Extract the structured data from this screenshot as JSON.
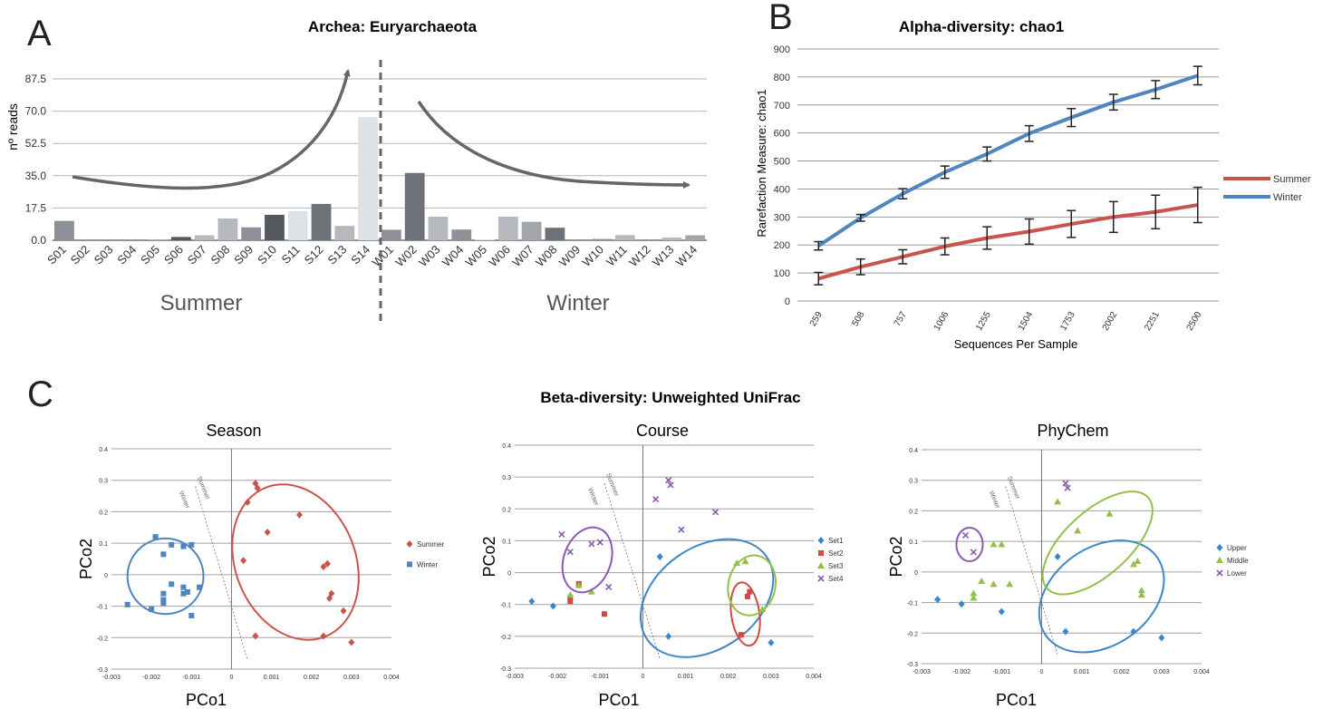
{
  "panel_letters": {
    "a": "A",
    "b": "B",
    "c": "C"
  },
  "colors": {
    "bar_palette": [
      "#8d9096",
      "#b5b8bd",
      "#545960",
      "#6d7279",
      "#cfd3d8",
      "#a2a5aa",
      "#7b7f86",
      "#dde2e7"
    ],
    "summer": "#c8554c",
    "winter": "#4e86c0",
    "set1": "#3f86c6",
    "set2": "#d04a42",
    "set3": "#92c04a",
    "set4": "#8a5ab0",
    "grid": "#9a9a9a",
    "arrow": "#666666"
  },
  "chart_data": [
    {
      "id": "A",
      "type": "bar",
      "title": "Archea: Euryarchaeota",
      "ylabel": "nº reads",
      "xlabel": "",
      "ylim": [
        0,
        87.5
      ],
      "yticks": [
        "0.0",
        "17.5",
        "35.0",
        "52.5",
        "70.0",
        "87.5"
      ],
      "group_labels": [
        "Summer",
        "Winter"
      ],
      "grid": true,
      "categories": [
        "S01",
        "S02",
        "S03",
        "S04",
        "S05",
        "S06",
        "S07",
        "S08",
        "S09",
        "S10",
        "S11",
        "S12",
        "S13",
        "S14",
        "W01",
        "W02",
        "W03",
        "W04",
        "W05",
        "W06",
        "W07",
        "W08",
        "W09",
        "W10",
        "W11",
        "W12",
        "W13",
        "W14"
      ],
      "values": [
        10.5,
        0,
        0,
        0,
        0.4,
        1.8,
        2.7,
        11.8,
        7,
        13.8,
        15.8,
        19.7,
        7.8,
        66.8,
        5.7,
        36.5,
        12.8,
        5.8,
        0.5,
        12.8,
        10,
        6.8,
        0,
        0.7,
        2.8,
        0,
        1.5,
        2.7
      ],
      "color_index": [
        0,
        4,
        4,
        4,
        5,
        2,
        1,
        1,
        0,
        2,
        7,
        3,
        1,
        7,
        0,
        3,
        1,
        0,
        7,
        1,
        5,
        3,
        4,
        0,
        1,
        4,
        1,
        5
      ]
    },
    {
      "id": "B",
      "type": "line",
      "title": "Alpha-diversity: chao1",
      "xlabel": "Sequences Per Sample",
      "ylabel": "Rarefaction Measure: chao1",
      "x": [
        "259",
        "508",
        "757",
        "1006",
        "1255",
        "1504",
        "1753",
        "2002",
        "2251",
        "2500"
      ],
      "ylim": [
        0,
        900
      ],
      "yticks": [
        "0",
        "100",
        "200",
        "300",
        "400",
        "500",
        "600",
        "700",
        "800",
        "900"
      ],
      "grid": true,
      "legend_position": "right",
      "series": [
        {
          "name": "Summer",
          "values": [
            80,
            122,
            158,
            195,
            225,
            248,
            275,
            300,
            318,
            343
          ],
          "errors": [
            22,
            28,
            25,
            30,
            40,
            45,
            48,
            55,
            60,
            63
          ]
        },
        {
          "name": "Winter",
          "values": [
            197,
            297,
            383,
            460,
            525,
            598,
            655,
            710,
            755,
            805
          ],
          "errors": [
            15,
            12,
            18,
            22,
            25,
            28,
            32,
            28,
            32,
            33
          ]
        }
      ]
    },
    {
      "id": "C",
      "group_title": "Beta-diversity: Unweighted UniFrac",
      "panels": [
        {
          "type": "scatter",
          "title": "Season",
          "xlabel": "PCo1",
          "ylabel": "PCo2",
          "xlim": [
            -0.003,
            0.004
          ],
          "ylim": [
            -0.3,
            0.4
          ],
          "xticks": [
            "-0.003",
            "-0.002",
            "-0.001",
            "0",
            "0.001",
            "0.002",
            "0.003",
            "0.004"
          ],
          "yticks": [
            "-0.3",
            "-0.2",
            "-0.1",
            "0",
            "0.1",
            "0.2",
            "0.3",
            "0.4"
          ],
          "divider_labels": [
            "Summer",
            "Winter"
          ],
          "legend_position": "right",
          "series": [
            {
              "name": "Summer",
              "marker": "diamond",
              "color_key": "summer",
              "points": [
                [
                  0.0004,
                  0.23
                ],
                [
                  0.0006,
                  0.29
                ],
                [
                  0.00065,
                  0.275
                ],
                [
                  0.0017,
                  0.19
                ],
                [
                  0.0009,
                  0.135
                ],
                [
                  0.0003,
                  0.045
                ],
                [
                  0.0023,
                  0.025
                ],
                [
                  0.0024,
                  0.035
                ],
                [
                  0.0025,
                  -0.06
                ],
                [
                  0.00245,
                  -0.075
                ],
                [
                  0.0028,
                  -0.115
                ],
                [
                  0.0006,
                  -0.195
                ],
                [
                  0.0023,
                  -0.195
                ],
                [
                  0.003,
                  -0.215
                ]
              ],
              "ellipse": {
                "cx": 0.0016,
                "cy": 0.04,
                "rx": 0.0015,
                "ry": 0.255,
                "rot": 22
              }
            },
            {
              "name": "Winter",
              "marker": "square",
              "color_key": "winter",
              "points": [
                [
                  -0.0019,
                  0.12
                ],
                [
                  -0.0015,
                  0.095
                ],
                [
                  -0.0012,
                  0.09
                ],
                [
                  -0.001,
                  0.095
                ],
                [
                  -0.0017,
                  0.065
                ],
                [
                  -0.0015,
                  -0.03
                ],
                [
                  -0.0012,
                  -0.04
                ],
                [
                  -0.0008,
                  -0.04
                ],
                [
                  -0.0017,
                  -0.06
                ],
                [
                  -0.0012,
                  -0.06
                ],
                [
                  -0.0011,
                  -0.055
                ],
                [
                  -0.0017,
                  -0.08
                ],
                [
                  -0.0017,
                  -0.09
                ],
                [
                  -0.0026,
                  -0.095
                ],
                [
                  -0.002,
                  -0.11
                ],
                [
                  -0.001,
                  -0.13
                ]
              ],
              "ellipse": {
                "cx": -0.00165,
                "cy": -0.005,
                "rx": 0.00095,
                "ry": 0.12,
                "rot": 0
              }
            }
          ]
        },
        {
          "type": "scatter",
          "title": "Course",
          "xlabel": "PCo1",
          "ylabel": "PCo2",
          "xlim": [
            -0.003,
            0.004
          ],
          "ylim": [
            -0.3,
            0.4
          ],
          "xticks": [
            "-0.003",
            "-0.002",
            "-0.001",
            "0",
            "0.001",
            "0.002",
            "0.003",
            "0.004"
          ],
          "yticks": [
            "-0.3",
            "-0.2",
            "-0.1",
            "0",
            "0.1",
            "0.2",
            "0.3",
            "0.4"
          ],
          "divider_labels": [
            "Summer",
            "Winter"
          ],
          "legend_position": "right",
          "series": [
            {
              "name": "Set1",
              "marker": "diamond",
              "color_key": "set1",
              "points": [
                [
                  -0.0026,
                  -0.09
                ],
                [
                  -0.0021,
                  -0.105
                ],
                [
                  0.0004,
                  0.05
                ],
                [
                  0.0006,
                  -0.2
                ],
                [
                  0.003,
                  -0.22
                ]
              ],
              "ellipse": {
                "cx": 0.0015,
                "cy": -0.08,
                "rx": 0.0017,
                "ry": 0.16,
                "rot": 35
              }
            },
            {
              "name": "Set2",
              "marker": "square",
              "color_key": "set2",
              "points": [
                [
                  -0.0017,
                  -0.08
                ],
                [
                  -0.0017,
                  -0.09
                ],
                [
                  -0.0015,
                  -0.035
                ],
                [
                  -0.0009,
                  -0.13
                ],
                [
                  0.0025,
                  -0.06
                ],
                [
                  0.00245,
                  -0.075
                ],
                [
                  0.0023,
                  -0.195
                ]
              ],
              "ellipse": {
                "cx": 0.0024,
                "cy": -0.13,
                "rx": 0.00033,
                "ry": 0.1,
                "rot": 8
              }
            },
            {
              "name": "Set3",
              "marker": "triangle",
              "color_key": "set3",
              "points": [
                [
                  -0.0017,
                  -0.07
                ],
                [
                  -0.0015,
                  -0.04
                ],
                [
                  -0.0012,
                  -0.06
                ],
                [
                  0.0022,
                  0.03
                ],
                [
                  0.0024,
                  0.035
                ],
                [
                  0.0028,
                  -0.115
                ]
              ],
              "ellipse": {
                "cx": 0.00255,
                "cy": -0.04,
                "rx": 0.00055,
                "ry": 0.095,
                "rot": -12
              }
            },
            {
              "name": "Set4",
              "marker": "cross",
              "color_key": "set4",
              "points": [
                [
                  -0.0019,
                  0.12
                ],
                [
                  -0.0017,
                  0.065
                ],
                [
                  -0.0012,
                  0.09
                ],
                [
                  -0.001,
                  0.095
                ],
                [
                  -0.0008,
                  -0.045
                ],
                [
                  0.0003,
                  0.23
                ],
                [
                  0.0006,
                  0.29
                ],
                [
                  0.00065,
                  0.275
                ],
                [
                  0.0009,
                  0.135
                ],
                [
                  0.0017,
                  0.19
                ]
              ],
              "ellipse": {
                "cx": -0.0013,
                "cy": 0.04,
                "rx": 0.00055,
                "ry": 0.105,
                "rot": -20
              }
            }
          ]
        },
        {
          "type": "scatter",
          "title": "PhyChem",
          "xlabel": "PCo1",
          "ylabel": "PCo2",
          "xlim": [
            -0.003,
            0.004
          ],
          "ylim": [
            -0.3,
            0.4
          ],
          "xticks": [
            "-0.003",
            "-0.002",
            "-0.001",
            "0",
            "0.001",
            "0.002",
            "0.003",
            "0.004"
          ],
          "yticks": [
            "-0.3",
            "-0.2",
            "-0.1",
            "0",
            "0.1",
            "0.2",
            "0.3",
            "0.4"
          ],
          "divider_labels": [
            "Summer",
            "Winter"
          ],
          "legend_position": "right",
          "series": [
            {
              "name": "Upper",
              "marker": "diamond",
              "color_key": "set1",
              "points": [
                [
                  -0.0026,
                  -0.09
                ],
                [
                  -0.002,
                  -0.105
                ],
                [
                  -0.001,
                  -0.13
                ],
                [
                  0.0004,
                  0.05
                ],
                [
                  0.0006,
                  -0.195
                ],
                [
                  0.0023,
                  -0.195
                ],
                [
                  0.003,
                  -0.215
                ]
              ],
              "ellipse": {
                "cx": 0.0015,
                "cy": -0.08,
                "rx": 0.0017,
                "ry": 0.16,
                "rot": 35
              }
            },
            {
              "name": "Middle",
              "marker": "triangle",
              "color_key": "set3",
              "points": [
                [
                  -0.0017,
                  -0.07
                ],
                [
                  -0.0017,
                  -0.085
                ],
                [
                  -0.0015,
                  -0.03
                ],
                [
                  -0.0012,
                  -0.04
                ],
                [
                  -0.0012,
                  0.09
                ],
                [
                  -0.001,
                  0.09
                ],
                [
                  -0.0008,
                  -0.04
                ],
                [
                  0.0004,
                  0.23
                ],
                [
                  0.0009,
                  0.135
                ],
                [
                  0.0017,
                  0.19
                ],
                [
                  0.0023,
                  0.025
                ],
                [
                  0.0024,
                  0.035
                ],
                [
                  0.0025,
                  -0.06
                ],
                [
                  0.0025,
                  -0.075
                ]
              ],
              "ellipse": {
                "cx": 0.0014,
                "cy": 0.095,
                "rx": 0.0017,
                "ry": 0.105,
                "rot": 42
              }
            },
            {
              "name": "Lower",
              "marker": "cross",
              "color_key": "set4",
              "points": [
                [
                  -0.0019,
                  0.12
                ],
                [
                  -0.0017,
                  0.065
                ],
                [
                  0.0006,
                  0.29
                ],
                [
                  0.00065,
                  0.275
                ]
              ],
              "ellipse": {
                "cx": -0.0018,
                "cy": 0.09,
                "rx": 0.00033,
                "ry": 0.055,
                "rot": 0
              }
            }
          ]
        }
      ]
    }
  ]
}
